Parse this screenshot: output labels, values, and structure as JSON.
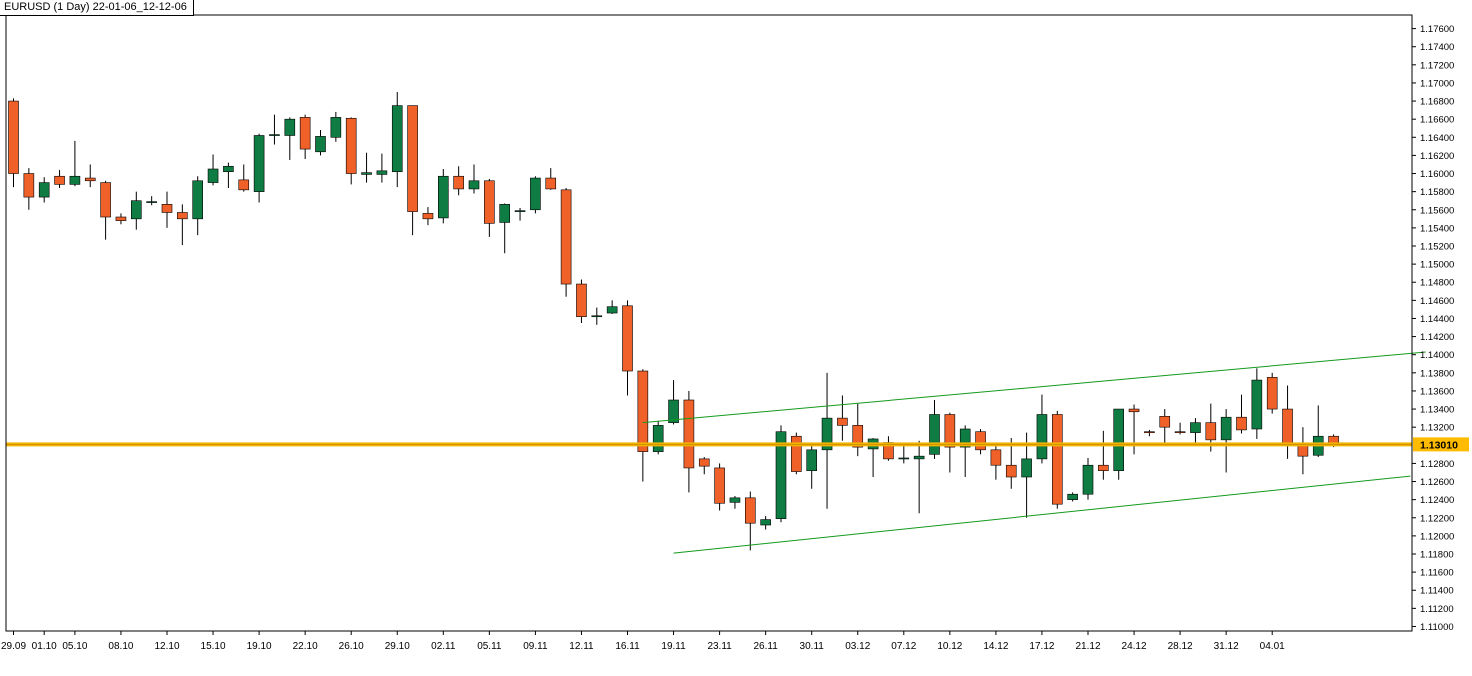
{
  "chart_data": {
    "type": "candlestick",
    "title": "EURUSD (1 Day) 22-01-06_12-12-06",
    "symbol": "EURUSD",
    "timeframe": "1 Day",
    "current_price": 1.1301,
    "current_price_label": "1.13010",
    "ylim": [
      1.1095,
      1.1775
    ],
    "y_ticks": [
      "1.17600",
      "1.17400",
      "1.17200",
      "1.17000",
      "1.16800",
      "1.16600",
      "1.16400",
      "1.16200",
      "1.16000",
      "1.15800",
      "1.15600",
      "1.15400",
      "1.15200",
      "1.15000",
      "1.14800",
      "1.14600",
      "1.14400",
      "1.14200",
      "1.14000",
      "1.13800",
      "1.13600",
      "1.13400",
      "1.13200",
      "1.12800",
      "1.12600",
      "1.12400",
      "1.12200",
      "1.12000",
      "1.11800",
      "1.11600",
      "1.11400",
      "1.11200",
      "1.11000"
    ],
    "x_ticks": [
      {
        "label": "29.09",
        "index": 0
      },
      {
        "label": "01.10",
        "index": 2
      },
      {
        "label": "05.10",
        "index": 4
      },
      {
        "label": "08.10",
        "index": 7
      },
      {
        "label": "12.10",
        "index": 10
      },
      {
        "label": "15.10",
        "index": 13
      },
      {
        "label": "19.10",
        "index": 16
      },
      {
        "label": "22.10",
        "index": 19
      },
      {
        "label": "26.10",
        "index": 22
      },
      {
        "label": "29.10",
        "index": 25
      },
      {
        "label": "02.11",
        "index": 28
      },
      {
        "label": "05.11",
        "index": 31
      },
      {
        "label": "09.11",
        "index": 34
      },
      {
        "label": "12.11",
        "index": 37
      },
      {
        "label": "16.11",
        "index": 40
      },
      {
        "label": "19.11",
        "index": 43
      },
      {
        "label": "23.11",
        "index": 46
      },
      {
        "label": "26.11",
        "index": 49
      },
      {
        "label": "30.11",
        "index": 52
      },
      {
        "label": "03.12",
        "index": 55
      },
      {
        "label": "07.12",
        "index": 58
      },
      {
        "label": "10.12",
        "index": 61
      },
      {
        "label": "14.12",
        "index": 64
      },
      {
        "label": "17.12",
        "index": 67
      },
      {
        "label": "21.12",
        "index": 70
      },
      {
        "label": "24.12",
        "index": 73
      },
      {
        "label": "28.12",
        "index": 76
      },
      {
        "label": "31.12",
        "index": 79
      },
      {
        "label": "04.01",
        "index": 82
      }
    ],
    "candles": [
      {
        "o": 1.168,
        "h": 1.1683,
        "l": 1.1585,
        "c": 1.16
      },
      {
        "o": 1.16,
        "h": 1.1606,
        "l": 1.156,
        "c": 1.1574
      },
      {
        "o": 1.1574,
        "h": 1.1596,
        "l": 1.1568,
        "c": 1.159
      },
      {
        "o": 1.1597,
        "h": 1.1604,
        "l": 1.1584,
        "c": 1.1588
      },
      {
        "o": 1.1588,
        "h": 1.1636,
        "l": 1.1586,
        "c": 1.1597
      },
      {
        "o": 1.1595,
        "h": 1.161,
        "l": 1.1585,
        "c": 1.1592
      },
      {
        "o": 1.159,
        "h": 1.1592,
        "l": 1.1527,
        "c": 1.1552
      },
      {
        "o": 1.1552,
        "h": 1.1556,
        "l": 1.1544,
        "c": 1.1548
      },
      {
        "o": 1.155,
        "h": 1.158,
        "l": 1.1538,
        "c": 1.157
      },
      {
        "o": 1.1568,
        "h": 1.1575,
        "l": 1.1565,
        "c": 1.1569
      },
      {
        "o": 1.1566,
        "h": 1.158,
        "l": 1.154,
        "c": 1.1557
      },
      {
        "o": 1.1557,
        "h": 1.1566,
        "l": 1.1521,
        "c": 1.155
      },
      {
        "o": 1.155,
        "h": 1.1597,
        "l": 1.1532,
        "c": 1.1592
      },
      {
        "o": 1.159,
        "h": 1.1621,
        "l": 1.1587,
        "c": 1.1605
      },
      {
        "o": 1.1602,
        "h": 1.1612,
        "l": 1.1584,
        "c": 1.1608
      },
      {
        "o": 1.1593,
        "h": 1.161,
        "l": 1.158,
        "c": 1.1582
      },
      {
        "o": 1.158,
        "h": 1.1644,
        "l": 1.1568,
        "c": 1.1642
      },
      {
        "o": 1.1642,
        "h": 1.1665,
        "l": 1.1632,
        "c": 1.1643
      },
      {
        "o": 1.1642,
        "h": 1.1662,
        "l": 1.1615,
        "c": 1.166
      },
      {
        "o": 1.1662,
        "h": 1.1665,
        "l": 1.1616,
        "c": 1.1627
      },
      {
        "o": 1.1624,
        "h": 1.1648,
        "l": 1.162,
        "c": 1.1641
      },
      {
        "o": 1.164,
        "h": 1.1668,
        "l": 1.1635,
        "c": 1.1662
      },
      {
        "o": 1.1661,
        "h": 1.1662,
        "l": 1.1588,
        "c": 1.16
      },
      {
        "o": 1.1599,
        "h": 1.1623,
        "l": 1.159,
        "c": 1.1601
      },
      {
        "o": 1.1599,
        "h": 1.1622,
        "l": 1.159,
        "c": 1.1603
      },
      {
        "o": 1.1602,
        "h": 1.169,
        "l": 1.1585,
        "c": 1.1675
      },
      {
        "o": 1.1675,
        "h": 1.1675,
        "l": 1.1532,
        "c": 1.1558
      },
      {
        "o": 1.1556,
        "h": 1.1563,
        "l": 1.1543,
        "c": 1.155
      },
      {
        "o": 1.1551,
        "h": 1.1605,
        "l": 1.1545,
        "c": 1.1597
      },
      {
        "o": 1.1597,
        "h": 1.1608,
        "l": 1.1576,
        "c": 1.1583
      },
      {
        "o": 1.1583,
        "h": 1.161,
        "l": 1.1578,
        "c": 1.1592
      },
      {
        "o": 1.1592,
        "h": 1.1594,
        "l": 1.153,
        "c": 1.1545
      },
      {
        "o": 1.1546,
        "h": 1.1567,
        "l": 1.1512,
        "c": 1.1566
      },
      {
        "o": 1.1558,
        "h": 1.1562,
        "l": 1.1548,
        "c": 1.1559
      },
      {
        "o": 1.156,
        "h": 1.1597,
        "l": 1.1556,
        "c": 1.1595
      },
      {
        "o": 1.1595,
        "h": 1.1606,
        "l": 1.1582,
        "c": 1.1583
      },
      {
        "o": 1.1582,
        "h": 1.1584,
        "l": 1.1464,
        "c": 1.1478
      },
      {
        "o": 1.1478,
        "h": 1.1483,
        "l": 1.1435,
        "c": 1.1442
      },
      {
        "o": 1.1442,
        "h": 1.1452,
        "l": 1.1433,
        "c": 1.1443
      },
      {
        "o": 1.1446,
        "h": 1.146,
        "l": 1.1445,
        "c": 1.1453
      },
      {
        "o": 1.1454,
        "h": 1.146,
        "l": 1.1355,
        "c": 1.1382
      },
      {
        "o": 1.1382,
        "h": 1.1384,
        "l": 1.126,
        "c": 1.1293
      },
      {
        "o": 1.1293,
        "h": 1.1327,
        "l": 1.129,
        "c": 1.1322
      },
      {
        "o": 1.1325,
        "h": 1.1372,
        "l": 1.1323,
        "c": 1.135
      },
      {
        "o": 1.135,
        "h": 1.136,
        "l": 1.1248,
        "c": 1.1275
      },
      {
        "o": 1.1285,
        "h": 1.1287,
        "l": 1.1268,
        "c": 1.1277
      },
      {
        "o": 1.1275,
        "h": 1.128,
        "l": 1.1228,
        "c": 1.1236
      },
      {
        "o": 1.1237,
        "h": 1.1244,
        "l": 1.123,
        "c": 1.1242
      },
      {
        "o": 1.1242,
        "h": 1.1249,
        "l": 1.1184,
        "c": 1.1214
      },
      {
        "o": 1.1212,
        "h": 1.1222,
        "l": 1.1207,
        "c": 1.1218
      },
      {
        "o": 1.1219,
        "h": 1.1322,
        "l": 1.1215,
        "c": 1.1315
      },
      {
        "o": 1.131,
        "h": 1.1314,
        "l": 1.1268,
        "c": 1.1271
      },
      {
        "o": 1.1272,
        "h": 1.1302,
        "l": 1.1252,
        "c": 1.1295
      },
      {
        "o": 1.1295,
        "h": 1.138,
        "l": 1.123,
        "c": 1.133
      },
      {
        "o": 1.133,
        "h": 1.1355,
        "l": 1.1305,
        "c": 1.1322
      },
      {
        "o": 1.1322,
        "h": 1.1346,
        "l": 1.1288,
        "c": 1.1298
      },
      {
        "o": 1.1296,
        "h": 1.1308,
        "l": 1.1265,
        "c": 1.1307
      },
      {
        "o": 1.1303,
        "h": 1.131,
        "l": 1.1283,
        "c": 1.1285
      },
      {
        "o": 1.1285,
        "h": 1.1302,
        "l": 1.128,
        "c": 1.1286
      },
      {
        "o": 1.1285,
        "h": 1.1305,
        "l": 1.1225,
        "c": 1.1288
      },
      {
        "o": 1.129,
        "h": 1.135,
        "l": 1.1285,
        "c": 1.1334
      },
      {
        "o": 1.1334,
        "h": 1.1336,
        "l": 1.127,
        "c": 1.1298
      },
      {
        "o": 1.1298,
        "h": 1.1322,
        "l": 1.1265,
        "c": 1.1318
      },
      {
        "o": 1.1315,
        "h": 1.1318,
        "l": 1.129,
        "c": 1.1295
      },
      {
        "o": 1.1295,
        "h": 1.1302,
        "l": 1.1262,
        "c": 1.1278
      },
      {
        "o": 1.1278,
        "h": 1.1308,
        "l": 1.1252,
        "c": 1.1265
      },
      {
        "o": 1.1265,
        "h": 1.1314,
        "l": 1.122,
        "c": 1.1285
      },
      {
        "o": 1.1285,
        "h": 1.1356,
        "l": 1.128,
        "c": 1.1334
      },
      {
        "o": 1.1334,
        "h": 1.1338,
        "l": 1.123,
        "c": 1.1235
      },
      {
        "o": 1.124,
        "h": 1.1248,
        "l": 1.1238,
        "c": 1.1246
      },
      {
        "o": 1.1246,
        "h": 1.1286,
        "l": 1.124,
        "c": 1.1278
      },
      {
        "o": 1.1278,
        "h": 1.1316,
        "l": 1.1262,
        "c": 1.1272
      },
      {
        "o": 1.1272,
        "h": 1.134,
        "l": 1.1262,
        "c": 1.134
      },
      {
        "o": 1.134,
        "h": 1.1345,
        "l": 1.129,
        "c": 1.1337
      },
      {
        "o": 1.1315,
        "h": 1.1317,
        "l": 1.131,
        "c": 1.1314
      },
      {
        "o": 1.1332,
        "h": 1.134,
        "l": 1.13,
        "c": 1.132
      },
      {
        "o": 1.1315,
        "h": 1.1325,
        "l": 1.1312,
        "c": 1.1314
      },
      {
        "o": 1.1314,
        "h": 1.133,
        "l": 1.13,
        "c": 1.1325
      },
      {
        "o": 1.1325,
        "h": 1.1346,
        "l": 1.1293,
        "c": 1.1306
      },
      {
        "o": 1.1306,
        "h": 1.134,
        "l": 1.127,
        "c": 1.1331
      },
      {
        "o": 1.1331,
        "h": 1.1356,
        "l": 1.1313,
        "c": 1.1317
      },
      {
        "o": 1.1318,
        "h": 1.1385,
        "l": 1.1307,
        "c": 1.1372
      },
      {
        "o": 1.1375,
        "h": 1.138,
        "l": 1.1335,
        "c": 1.134
      },
      {
        "o": 1.134,
        "h": 1.1366,
        "l": 1.1285,
        "c": 1.13
      },
      {
        "o": 1.13,
        "h": 1.132,
        "l": 1.1268,
        "c": 1.1288
      },
      {
        "o": 1.1289,
        "h": 1.1344,
        "l": 1.1287,
        "c": 1.131
      },
      {
        "o": 1.131,
        "h": 1.1312,
        "l": 1.1298,
        "c": 1.1301
      }
    ],
    "trendlines": [
      {
        "name": "upper-channel",
        "from": {
          "index": 41,
          "price": 1.1325
        },
        "to": {
          "index": 92,
          "price": 1.1403
        }
      },
      {
        "name": "lower-channel",
        "from": {
          "index": 43,
          "price": 1.1181
        },
        "to": {
          "index": 91,
          "price": 1.1266
        }
      }
    ],
    "colors": {
      "bull": "#0e7c43",
      "bear": "#f0612a",
      "wick": "#000000",
      "trendline": "#139a1c",
      "price_line": "#f0b400",
      "price_label_bg": "#ffbb00",
      "axis": "#000000"
    }
  }
}
